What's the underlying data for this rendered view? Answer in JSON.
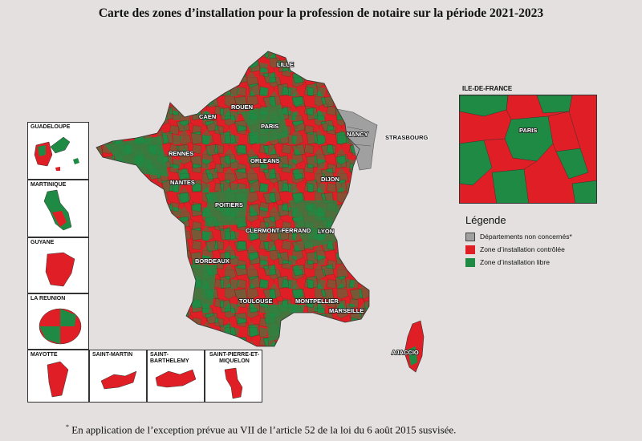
{
  "title": "Carte des zones d’installation pour la profession de notaire sur la période 2021-2023",
  "colors": {
    "controlled": "#e01e25",
    "free": "#1f8a43",
    "not_concerned": "#a0a0a0"
  },
  "cities": {
    "lille": "LILLE",
    "rouen": "ROUEN",
    "caen": "CAEN",
    "paris": "PARIS",
    "nancy": "NANCY",
    "strasbourg": "STRASBOURG",
    "rennes": "RENNES",
    "orleans": "ORLEANS",
    "nantes": "NANTES",
    "dijon": "DIJON",
    "poitiers": "POITIERS",
    "clermont": "CLERMONT-FERRAND",
    "lyon": "LYON",
    "bordeaux": "BORDEAUX",
    "toulouse": "TOULOUSE",
    "montpellier": "MONTPELLIER",
    "marseille": "MARSEILLE",
    "ajaccio": "AJACCIO"
  },
  "insets": {
    "guadeloupe": "GUADELOUPE",
    "martinique": "MARTINIQUE",
    "guyane": "GUYANE",
    "reunion": "LA REUNION",
    "mayotte": "MAYOTTE",
    "saint_martin": "SAINT-MARTIN",
    "saint_barthelemy": "SAINT-BARTHELEMY",
    "spm_line1": "SAINT-PIERRE-ET-",
    "spm_line2": "MIQUELON"
  },
  "idf": {
    "title": "ILE-DE-FRANCE",
    "paris_label": "PARIS"
  },
  "legend": {
    "title": "Légende",
    "items": [
      {
        "label": "Départements non concernés*",
        "color": "#a0a0a0"
      },
      {
        "label": "Zone d’installation contrôlée",
        "color": "#e01e25"
      },
      {
        "label": "Zone d’installation libre",
        "color": "#1f8a43"
      }
    ]
  },
  "footnote": {
    "mark": "*",
    "text": " En application de l’exception prévue au VII de l’article 52 de la loi du 6 août 2015 susvisée."
  }
}
